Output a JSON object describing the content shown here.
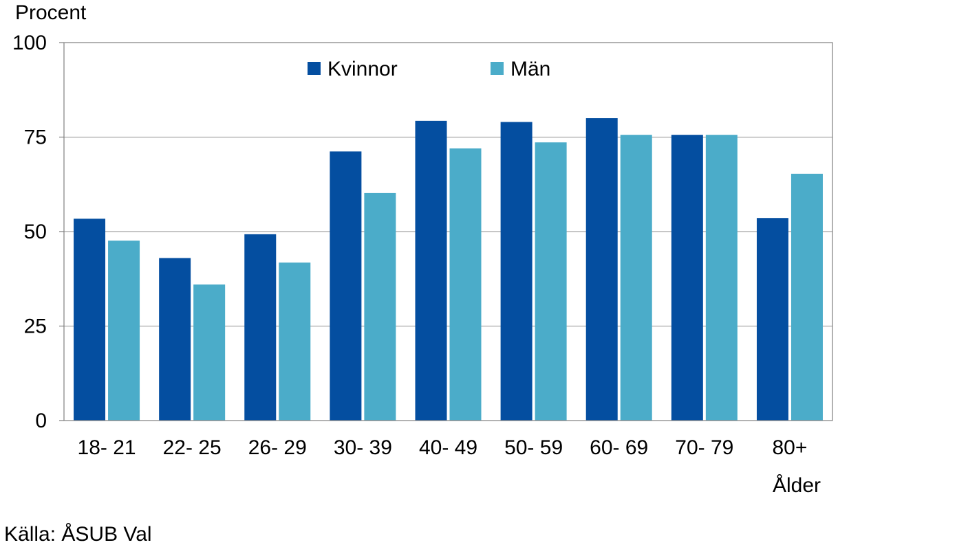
{
  "chart_data": {
    "type": "bar",
    "ylabel": "Procent",
    "xlabel": "Ålder",
    "source": "Källa: ÅSUB Val",
    "ylim": [
      0,
      100
    ],
    "yticks": [
      0,
      25,
      50,
      75,
      100
    ],
    "grid": true,
    "legend_position": "top",
    "categories": [
      "18- 21",
      "22- 25",
      "26- 29",
      "30- 39",
      "40- 49",
      "50- 59",
      "60- 69",
      "70- 79",
      "80+"
    ],
    "series": [
      {
        "name": "Kvinnor",
        "color": "#044ea0",
        "values": [
          53.4,
          43.0,
          49.3,
          71.2,
          79.3,
          79.0,
          80.0,
          75.6,
          53.6
        ]
      },
      {
        "name": "Män",
        "color": "#4bacc9",
        "values": [
          47.6,
          36.0,
          41.8,
          60.2,
          72.0,
          73.6,
          75.6,
          75.6,
          65.3
        ]
      }
    ]
  }
}
